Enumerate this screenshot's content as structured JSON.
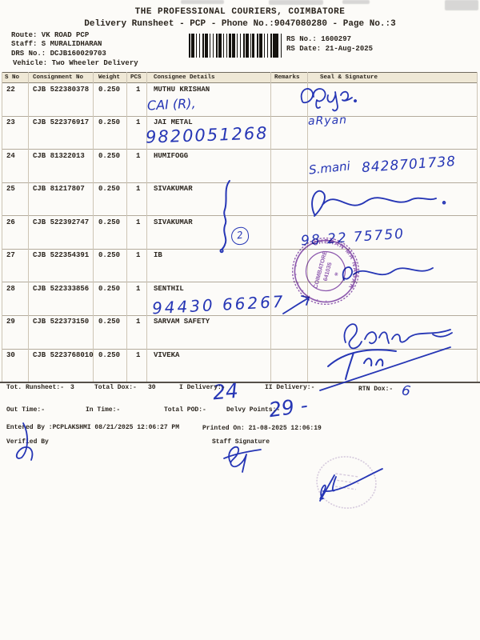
{
  "header": {
    "company": "THE PROFESSIONAL COURIERS, COIMBATORE",
    "subtitle": "Delivery Runsheet - PCP - Phone No.:9047080280 - Page No.:3",
    "route": "Route: VK ROAD PCP",
    "staff": "Staff: S MURALIDHARAN",
    "drs_no": "DRS No.: DCJB160029703",
    "vehicle": "Vehicle: Two Wheeler Delivery",
    "rs_no": "RS No.: 1600297",
    "rs_date": "RS Date: 21-Aug-2025"
  },
  "table": {
    "columns": [
      "S No",
      "Consignment No",
      "Weight",
      "PCS",
      "Consignee Details",
      "Remarks",
      "Seal & Signature"
    ],
    "rows": [
      {
        "sno": "22",
        "consignment": "CJB 522380378",
        "weight": "0.250",
        "pcs": "1",
        "consignee": "MUTHU KRISHAN"
      },
      {
        "sno": "23",
        "consignment": "CJB 522376917",
        "weight": "0.250",
        "pcs": "1",
        "consignee": "JAI METAL"
      },
      {
        "sno": "24",
        "consignment": "CJB 81322013",
        "weight": "0.250",
        "pcs": "1",
        "consignee": "HUMIFOGG"
      },
      {
        "sno": "25",
        "consignment": "CJB 81217807",
        "weight": "0.250",
        "pcs": "1",
        "consignee": "SIVAKUMAR"
      },
      {
        "sno": "26",
        "consignment": "CJB 522392747",
        "weight": "0.250",
        "pcs": "1",
        "consignee": "SIVAKUMAR"
      },
      {
        "sno": "27",
        "consignment": "CJB 522354391",
        "weight": "0.250",
        "pcs": "1",
        "consignee": "IB"
      },
      {
        "sno": "28",
        "consignment": "CJB 522333856",
        "weight": "0.250",
        "pcs": "1",
        "consignee": "SENTHIL"
      },
      {
        "sno": "29",
        "consignment": "CJB 522373150",
        "weight": "0.250",
        "pcs": "1",
        "consignee": "SARVAM SAFETY"
      },
      {
        "sno": "30",
        "consignment": "CJB 5223768010",
        "weight": "0.250",
        "pcs": "1",
        "consignee": "VIVEKA"
      }
    ]
  },
  "ink": {
    "cai_note": "CAI (R),",
    "jai_phone": "9820051268",
    "aryan": "aRyan",
    "smani": "S.mani",
    "smani_phone": "8428701738",
    "phone_7575": "98 22 75750",
    "senthil_phone": "94430 66267",
    "circled_count": "2",
    "i_delivery_count": "24",
    "delvy_points_count": "29 -",
    "rtn_dox_count": "6",
    "color": "#2636b5"
  },
  "stamp": {
    "ring_text": "CHERAN MA NAGAR",
    "center_line1": "COIMBATORE",
    "center_line2": "641035",
    "color": "#7b3da6"
  },
  "totals": {
    "tot_runsheet_label": "Tot. Runsheet:-",
    "tot_runsheet_value": "3",
    "total_dox_label": "Total Dox:-",
    "total_dox_value": "30",
    "i_delivery_label": "I Delivery:-",
    "ii_delivery_label": "II Delivery:-",
    "rtn_dox_label": "RTN Dox:-",
    "out_time_label": "Out Time:-",
    "in_time_label": "In Time:-",
    "total_pod_label": "Total POD:-",
    "delvy_points_label": "Delvy Points:-"
  },
  "footer": {
    "entered_by": "Entered By :PCPLAKSHMI 08/21/2025 12:06:27 PM",
    "printed_on": "Printed On: 21-08-2025 12:06:19",
    "verified_by": "Verified By",
    "staff_signature": "Staff Signature"
  }
}
